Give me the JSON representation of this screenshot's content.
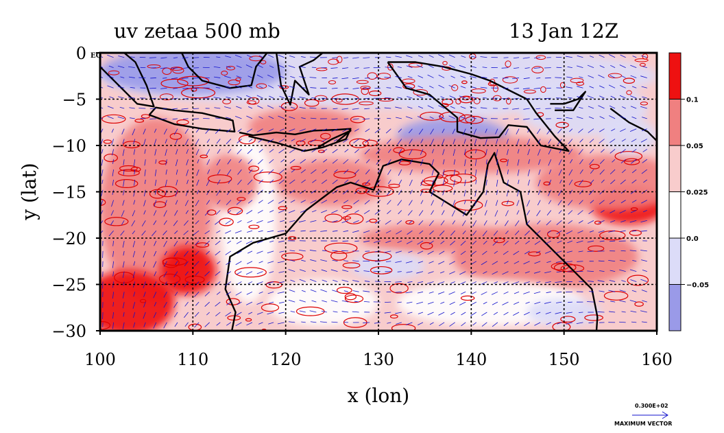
{
  "chart_data": {
    "type": "heatmap",
    "title_left": "uv zetaa 500 mb",
    "title_right": "13 Jan 12Z",
    "xlabel": "x (lon)",
    "ylabel": "y (lat)",
    "xlim": [
      100,
      160
    ],
    "ylim": [
      -30,
      0
    ],
    "x_ticks": [
      "100",
      "110",
      "120",
      "130",
      "140",
      "150",
      "160"
    ],
    "y_ticks": [
      "0",
      "−5",
      "−10",
      "−15",
      "−20",
      "−25",
      "−30"
    ],
    "x_tick_values": [
      100,
      110,
      120,
      130,
      140,
      150,
      160
    ],
    "y_tick_values": [
      0,
      -5,
      -10,
      -15,
      -20,
      -25,
      -30
    ],
    "eq_label": "EQ",
    "grid": true,
    "colorbar": {
      "labels": [
        "0.1",
        "0.05",
        "0.025",
        "0.0",
        "−0.05"
      ],
      "boundaries": [
        0.1,
        0.05,
        0.025,
        0.0,
        -0.05
      ],
      "colors": [
        "#ee1111",
        "#f08080",
        "#f8cccc",
        "#ffffff",
        "#dcdcf8",
        "#9a9ae8"
      ]
    },
    "vector_key": {
      "value": "0.300E+02",
      "label": "MAXIMUM VECTOR"
    },
    "colors": {
      "strong_positive": "#ee1111",
      "positive": "#f08080",
      "weak_positive": "#f8cccc",
      "neutral": "#ffffff",
      "weak_negative": "#dcdcf8",
      "negative": "#9a9ae8",
      "contour": "#dd0000",
      "vectors": "#1010cc",
      "coast": "#000000"
    }
  }
}
